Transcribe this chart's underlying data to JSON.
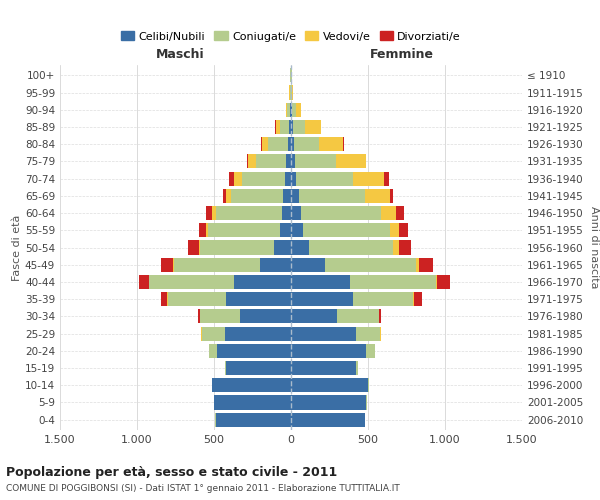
{
  "age_groups": [
    "0-4",
    "5-9",
    "10-14",
    "15-19",
    "20-24",
    "25-29",
    "30-34",
    "35-39",
    "40-44",
    "45-49",
    "50-54",
    "55-59",
    "60-64",
    "65-69",
    "70-74",
    "75-79",
    "80-84",
    "85-89",
    "90-94",
    "95-99",
    "100+"
  ],
  "birth_years": [
    "2006-2010",
    "2001-2005",
    "1996-2000",
    "1991-1995",
    "1986-1990",
    "1981-1985",
    "1976-1980",
    "1971-1975",
    "1966-1970",
    "1961-1965",
    "1956-1960",
    "1951-1955",
    "1946-1950",
    "1941-1945",
    "1936-1940",
    "1931-1935",
    "1926-1930",
    "1921-1925",
    "1916-1920",
    "1911-1915",
    "≤ 1910"
  ],
  "males": {
    "celibi": [
      490,
      500,
      510,
      420,
      480,
      430,
      330,
      420,
      370,
      200,
      110,
      70,
      60,
      50,
      40,
      30,
      20,
      10,
      5,
      2,
      2
    ],
    "coniugati": [
      2,
      2,
      5,
      10,
      50,
      150,
      260,
      380,
      550,
      560,
      480,
      470,
      430,
      340,
      280,
      200,
      130,
      60,
      20,
      5,
      2
    ],
    "vedovi": [
      0,
      0,
      0,
      0,
      1,
      2,
      2,
      3,
      5,
      5,
      10,
      10,
      20,
      30,
      50,
      50,
      40,
      30,
      10,
      3,
      1
    ],
    "divorziati": [
      0,
      0,
      0,
      0,
      2,
      5,
      10,
      40,
      60,
      80,
      70,
      50,
      40,
      20,
      30,
      5,
      2,
      2,
      0,
      0,
      0
    ]
  },
  "females": {
    "nubili": [
      480,
      490,
      500,
      420,
      490,
      420,
      300,
      400,
      380,
      220,
      120,
      80,
      65,
      50,
      35,
      25,
      20,
      12,
      8,
      3,
      2
    ],
    "coniugate": [
      2,
      2,
      5,
      12,
      55,
      160,
      270,
      390,
      560,
      590,
      540,
      560,
      520,
      430,
      370,
      270,
      160,
      80,
      25,
      5,
      2
    ],
    "vedove": [
      0,
      0,
      0,
      0,
      1,
      2,
      3,
      8,
      10,
      20,
      40,
      60,
      100,
      160,
      200,
      190,
      160,
      100,
      30,
      5,
      1
    ],
    "divorziate": [
      0,
      0,
      0,
      0,
      2,
      5,
      12,
      50,
      80,
      90,
      80,
      60,
      50,
      20,
      30,
      5,
      3,
      2,
      0,
      0,
      0
    ]
  },
  "colors": {
    "celibi_nubili": "#3a6ea5",
    "coniugati": "#b5cc8e",
    "vedovi": "#f5c842",
    "divorziati": "#cc2222"
  },
  "xlim": 1500,
  "title": "Popolazione per età, sesso e stato civile - 2011",
  "subtitle": "COMUNE DI POGGIBONSI (SI) - Dati ISTAT 1° gennaio 2011 - Elaborazione TUTTITALIA.IT",
  "xlabel_left": "Maschi",
  "xlabel_right": "Femmine",
  "ylabel_left": "Fasce di età",
  "ylabel_right": "Anni di nascita",
  "xticks": [
    -1500,
    -1000,
    -500,
    0,
    500,
    1000,
    1500
  ],
  "xtick_labels": [
    "1.500",
    "1.000",
    "500",
    "0",
    "500",
    "1.000",
    "1.500"
  ]
}
